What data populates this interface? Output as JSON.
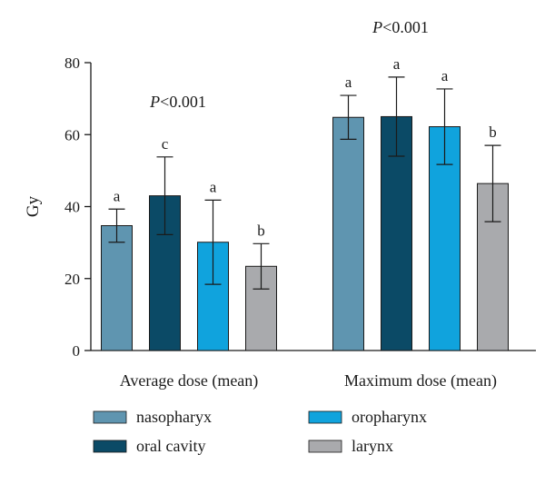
{
  "chart_data": {
    "type": "bar",
    "ylabel": "Gy",
    "ylim": [
      0,
      80
    ],
    "yticks": [
      0,
      20,
      40,
      60,
      80
    ],
    "categories": [
      "Average dose (mean)",
      "Maximum dose (mean)"
    ],
    "group_annotations": [
      "P<0.001",
      "P<0.001"
    ],
    "series": [
      {
        "name": "nasopharyx",
        "color": "#5f95b0",
        "values": [
          34.7,
          64.8
        ],
        "error": [
          4.6,
          6.1
        ],
        "letters": [
          "a",
          "a"
        ]
      },
      {
        "name": "oral cavity",
        "color": "#0b4a66",
        "values": [
          43.0,
          65.0
        ],
        "error": [
          10.8,
          11.0
        ],
        "letters": [
          "c",
          "a"
        ]
      },
      {
        "name": "oropharynx",
        "color": "#10a3dd",
        "values": [
          30.1,
          62.2
        ],
        "error": [
          11.7,
          10.5
        ],
        "letters": [
          "a",
          "a"
        ]
      },
      {
        "name": "larynx",
        "color": "#a9aaad",
        "values": [
          23.4,
          46.4
        ],
        "error": [
          6.3,
          10.6
        ],
        "letters": [
          "b",
          "b"
        ]
      }
    ],
    "legend_position": "bottom",
    "grid": false
  }
}
